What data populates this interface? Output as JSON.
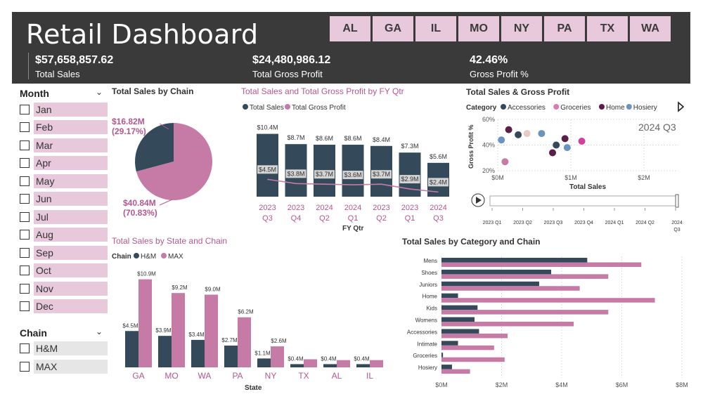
{
  "header": {
    "title": "Retail Dashboard",
    "states": [
      "AL",
      "GA",
      "IL",
      "MO",
      "NY",
      "PA",
      "TX",
      "WA"
    ],
    "kpis": [
      {
        "value": "$57,658,857.62",
        "label": "Total Sales"
      },
      {
        "value": "$24,480,986.12",
        "label": "Total Gross Profit"
      },
      {
        "value": "42.46%",
        "label": "Gross Profit %"
      }
    ]
  },
  "month_slicer": {
    "title": "Month",
    "items": [
      "Jan",
      "Feb",
      "Mar",
      "Apr",
      "May",
      "Jun",
      "Jul",
      "Aug",
      "Sep",
      "Oct",
      "Nov",
      "Dec"
    ]
  },
  "chain_slicer": {
    "title": "Chain",
    "items": [
      "H&M",
      "MAX"
    ]
  },
  "colors": {
    "dark": "#344a5a",
    "pink": "#c57ba6",
    "light_pink": "#e8c9dc"
  },
  "chart_titles": {
    "pie": "Total Sales by Chain",
    "combo": "Total Sales and Total Gross Profit by FY Qtr",
    "scatter": "Total Sales & Gross Profit",
    "state": "Total Sales by State and Chain",
    "category": "Total Sales by Category and Chain"
  },
  "chart_data": [
    {
      "type": "pie",
      "title": "Total Sales by Chain",
      "slices": [
        {
          "label": "$16.82M",
          "pct_label": "(29.17%)",
          "value": 16.82,
          "color": "#344a5a"
        },
        {
          "label": "$40.84M",
          "pct_label": "(70.83%)",
          "value": 40.84,
          "color": "#c57ba6"
        }
      ]
    },
    {
      "type": "bar",
      "title": "Total Sales and Total Gross Profit by FY Qtr",
      "legend": [
        "Total Sales",
        "Total Gross Profit"
      ],
      "xlabel": "FY Qtr",
      "categories": [
        [
          "2023",
          "Q3"
        ],
        [
          "2023",
          "Q4"
        ],
        [
          "2024",
          "Q2"
        ],
        [
          "2024",
          "Q1"
        ],
        [
          "2023",
          "Q2"
        ],
        [
          "2023",
          "Q1"
        ],
        [
          "2024",
          "Q3"
        ]
      ],
      "sales": [
        10.4,
        8.7,
        8.6,
        8.6,
        8.4,
        7.3,
        5.6
      ],
      "sales_labels": [
        "$10.4M",
        "$8.7M",
        "$8.6M",
        "$8.6M",
        "$8.4M",
        "$7.3M",
        "$5.6M"
      ],
      "profit": [
        4.5,
        3.8,
        3.7,
        3.6,
        3.7,
        2.9,
        2.4
      ],
      "profit_labels": [
        "$4.5M",
        "$3.8M",
        "$3.7M",
        "$3.6M",
        "$3.7M",
        "$2.9M",
        "$2.4M"
      ]
    },
    {
      "type": "scatter",
      "title": "Total Sales & Gross Profit",
      "legend_title": "Category",
      "legend": [
        {
          "name": "Accessories",
          "color": "#344a5a"
        },
        {
          "name": "Groceries",
          "color": "#d47fb0"
        },
        {
          "name": "Home",
          "color": "#5a1e48"
        },
        {
          "name": "Hosiery",
          "color": "#6a94bd"
        }
      ],
      "xlabel": "Total Sales",
      "ylabel": "Gross Profit %",
      "x_ticks": [
        "$0M",
        "$1M",
        "$2M"
      ],
      "y_ticks": [
        "60%",
        "40%",
        "20%"
      ],
      "play_label": "2024 Q3",
      "timeline": [
        "2023 Q1",
        "2023 Q2",
        "2023 Q3",
        "2023 Q4",
        "2024 Q1",
        "2024 Q2",
        "2024 Q3"
      ],
      "points": [
        {
          "x": 0.05,
          "y": 44,
          "color": "#6a94bd"
        },
        {
          "x": 0.15,
          "y": 52,
          "color": "#5a1e48"
        },
        {
          "x": 0.28,
          "y": 48,
          "color": "#344a5a"
        },
        {
          "x": 0.4,
          "y": 49,
          "color": "#e8c9c9"
        },
        {
          "x": 0.6,
          "y": 49,
          "color": "#6a94bd"
        },
        {
          "x": 0.75,
          "y": 34,
          "color": "#5a1e48"
        },
        {
          "x": 0.8,
          "y": 40,
          "color": "#344a5a"
        },
        {
          "x": 0.92,
          "y": 45,
          "color": "#5a1e48"
        },
        {
          "x": 0.95,
          "y": 38,
          "color": "#6a94bd"
        },
        {
          "x": 1.15,
          "y": 43,
          "color": "#d43f9d"
        },
        {
          "x": 0.1,
          "y": 27,
          "color": "#c57ba6"
        }
      ]
    },
    {
      "type": "bar",
      "title": "Total Sales by State and Chain",
      "legend_title": "Chain",
      "legend": [
        "H&M",
        "MAX"
      ],
      "xlabel": "State",
      "categories": [
        "GA",
        "MO",
        "WA",
        "PA",
        "NY",
        "TX",
        "AL",
        "IL"
      ],
      "series": [
        {
          "name": "H&M",
          "values": [
            4.5,
            3.9,
            3.4,
            2.7,
            1.1,
            0.4,
            0.4,
            0.4
          ],
          "labels": [
            "$4.5M",
            "$3.9M",
            "$3.4M",
            "$2.7M",
            "$1.1M",
            "$0.4M",
            "$0.4M",
            "$0.4M"
          ]
        },
        {
          "name": "MAX",
          "values": [
            10.9,
            9.2,
            9.0,
            6.2,
            2.6,
            1.0,
            0.9,
            0.9
          ],
          "labels": [
            "$10.9M",
            "$9.2M",
            "$9.0M",
            "$6.2M",
            "$2.6M",
            "",
            "",
            ""
          ]
        }
      ]
    },
    {
      "type": "bar",
      "orientation": "horizontal",
      "title": "Total Sales by Category and Chain",
      "categories": [
        "Mens",
        "Shoes",
        "Juniors",
        "Home",
        "Kids",
        "Womens",
        "Accessories",
        "Intimate",
        "Groceries",
        "Hosiery"
      ],
      "x_ticks": [
        "$0M",
        "$2M",
        "$4M",
        "$6M",
        "$8M"
      ],
      "xlim": [
        0,
        8
      ],
      "series": [
        {
          "name": "H&M",
          "values": [
            4.85,
            3.65,
            3.25,
            0.55,
            1.2,
            1.1,
            1.25,
            0.55,
            0.05,
            0.35
          ]
        },
        {
          "name": "MAX",
          "values": [
            6.65,
            5.55,
            4.6,
            7.1,
            5.55,
            4.4,
            2.2,
            1.75,
            2.1,
            0.95
          ]
        }
      ]
    }
  ]
}
